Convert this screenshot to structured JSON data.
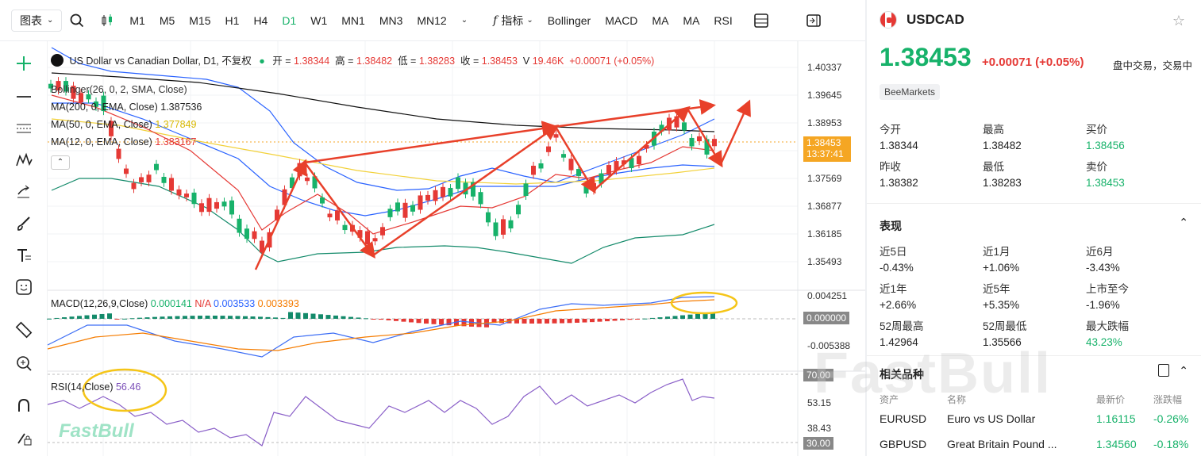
{
  "toolbar": {
    "chart_type_label": "图表",
    "timeframes": [
      "M1",
      "M5",
      "M15",
      "H1",
      "H4",
      "D1",
      "W1",
      "MN1",
      "MN3",
      "MN12"
    ],
    "active_timeframe": "D1",
    "indicators_label": "指标",
    "indicator_shortcuts": [
      "Bollinger",
      "MACD",
      "MA",
      "MA",
      "RSI"
    ]
  },
  "legend": {
    "instrument": "US Dollar vs Canadian Dollar, D1, 不复权",
    "open_label": "开 =",
    "open": "1.38344",
    "high_label": "高 =",
    "high": "1.38482",
    "low_label": "低 =",
    "low": "1.38283",
    "close_label": "收 =",
    "close": "1.38453",
    "volume_label": "V",
    "volume": "19.46K",
    "change": "+0.00071 (+0.05%)",
    "bollinger": "Bollinger(26, 0, 2, SMA, Close)",
    "ma200_label": "MA(200, 0, EMA, Close)",
    "ma200_value": "1.387536",
    "ma50_label": "MA(50, 0, EMA, Close)",
    "ma50_value": "1.377849",
    "ma12_label": "MA(12, 0, EMA, Close)",
    "ma12_value": "1.383167",
    "macd_label": "MACD(12,26,9,Close)",
    "macd_v1": "0.000141",
    "macd_v2": "N/A",
    "macd_v3": "0.003533",
    "macd_v4": "0.003393",
    "rsi_label": "RSI(14,Close)",
    "rsi_value": "56.46"
  },
  "price_axis": [
    "1.40337",
    "1.39645",
    "1.38953",
    "1.37569",
    "1.36877",
    "1.36185",
    "1.35493"
  ],
  "current_price_tag": "1.38453",
  "countdown_tag": "13:37:41",
  "macd_axis": [
    "0.004251",
    "0.000000",
    "-0.005388"
  ],
  "rsi_axis": [
    "70.00",
    "53.15",
    "38.43",
    "30.00"
  ],
  "chart_logo": "FastBull",
  "quote": {
    "symbol": "USDCAD",
    "price": "1.38453",
    "change": "+0.00071",
    "change_pct": "(+0.05%)",
    "status": "盘中交易，交易中",
    "broker": "BeeMarkets",
    "stats": [
      {
        "k": "今开",
        "v": "1.38344"
      },
      {
        "k": "最高",
        "v": "1.38482"
      },
      {
        "k": "买价",
        "v": "1.38456"
      },
      {
        "k": "昨收",
        "v": "1.38382"
      },
      {
        "k": "最低",
        "v": "1.38283"
      },
      {
        "k": "卖价",
        "v": "1.38453"
      }
    ]
  },
  "performance": {
    "title": "表现",
    "items": [
      {
        "k": "近5日",
        "v": "-0.43%"
      },
      {
        "k": "近1月",
        "v": "+1.06%"
      },
      {
        "k": "近6月",
        "v": "-3.43%"
      },
      {
        "k": "近1年",
        "v": "+2.66%"
      },
      {
        "k": "近5年",
        "v": "+5.35%"
      },
      {
        "k": "上市至今",
        "v": "-1.96%"
      },
      {
        "k": "52周最高",
        "v": "1.42964"
      },
      {
        "k": "52周最低",
        "v": "1.35566"
      },
      {
        "k": "最大跌幅",
        "v": "43.23%"
      }
    ]
  },
  "related": {
    "title": "相关品种",
    "headers": [
      "资产",
      "名称",
      "最新价",
      "涨跌幅"
    ],
    "rows": [
      {
        "sym": "EURUSD",
        "name": "Euro vs US Dollar",
        "price": "1.16115",
        "chg": "-0.26%"
      },
      {
        "sym": "GBPUSD",
        "name": "Great Britain Pound ...",
        "price": "1.34560",
        "chg": "-0.18%"
      }
    ]
  },
  "watermark": "FastBull",
  "colors": {
    "up": "#17b26a",
    "down": "#e53935",
    "accent": "#f5a623"
  }
}
